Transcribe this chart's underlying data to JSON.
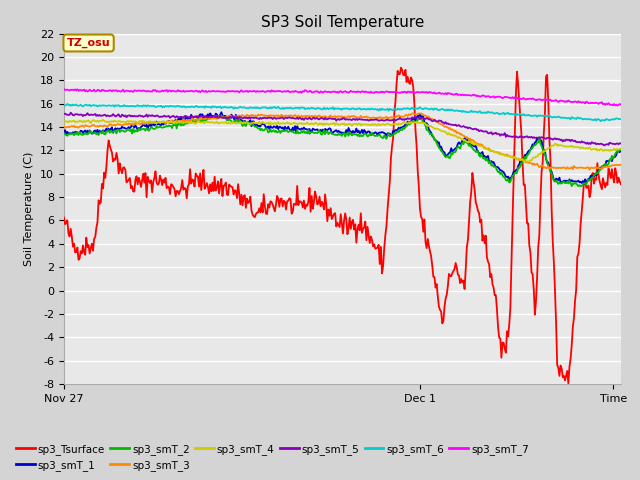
{
  "title": "SP3 Soil Temperature",
  "ylabel": "Soil Temperature (C)",
  "ylim": [
    -8,
    22
  ],
  "yticks": [
    -8,
    -6,
    -4,
    -2,
    0,
    2,
    4,
    6,
    8,
    10,
    12,
    14,
    16,
    18,
    20,
    22
  ],
  "xtick_positions": [
    0,
    96,
    148
  ],
  "xtick_labels": [
    "Nov 27",
    "Dec 1",
    "Time"
  ],
  "fig_bg_color": "#d4d4d4",
  "plot_bg_color": "#e8e8e8",
  "grid_color": "#ffffff",
  "series": [
    {
      "name": "sp3_Tsurface",
      "color": "#ff0000"
    },
    {
      "name": "sp3_smT_1",
      "color": "#0000cc"
    },
    {
      "name": "sp3_smT_2",
      "color": "#00bb00"
    },
    {
      "name": "sp3_smT_3",
      "color": "#ff8800"
    },
    {
      "name": "sp3_smT_4",
      "color": "#cccc00"
    },
    {
      "name": "sp3_smT_5",
      "color": "#8800bb"
    },
    {
      "name": "sp3_smT_6",
      "color": "#00cccc"
    },
    {
      "name": "sp3_smT_7",
      "color": "#ff00ff"
    }
  ],
  "tz_label": "TZ_osu",
  "tz_bg": "#ffffcc",
  "tz_border": "#aa8800",
  "total_hours": 150,
  "n_points": 500
}
